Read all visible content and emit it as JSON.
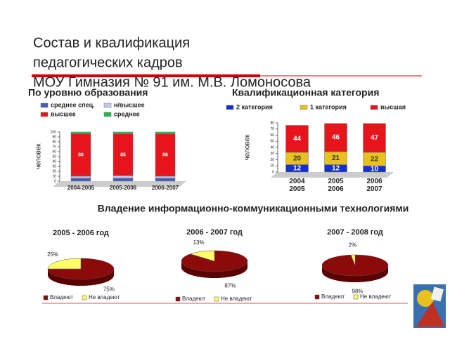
{
  "slide": {
    "title_lines": [
      "Состав и квалификация",
      "педагогических кадров",
      "МОУ Гимназия № 91 им. М.В. Ломоносова"
    ],
    "section_title": "Владение информационно-коммуникационными технологиями"
  },
  "chart_data": [
    {
      "type": "bar",
      "stacked": true,
      "title": "По уровню образования",
      "y_label": "человек",
      "categories": [
        "2004-2005",
        "2005-2006",
        "2006-2007"
      ],
      "series": [
        {
          "name": "среднее спец.",
          "color": "#4a5bb5",
          "values": [
            6,
            6,
            6
          ]
        },
        {
          "name": "н/высшее",
          "color": "#c8c8e8",
          "values": [
            4,
            5,
            4
          ]
        },
        {
          "name": "высшее",
          "color": "#e8141c",
          "values": [
            86,
            85,
            86
          ],
          "show_labels": true
        },
        {
          "name": "среднее",
          "color": "#2db34a",
          "values": [
            4,
            4,
            4
          ]
        }
      ],
      "ylim": [
        0,
        100
      ],
      "yticks": [
        0,
        10,
        20,
        30,
        40,
        50,
        60,
        70,
        80,
        90,
        100
      ]
    },
    {
      "type": "bar",
      "stacked": true,
      "title": "Квалификационная категория",
      "y_label": "человек",
      "categories": [
        "2004 2005",
        "2005 2006",
        "2006 2007"
      ],
      "series": [
        {
          "name": "2 категория",
          "color": "#1530d0",
          "values": [
            12,
            12,
            10
          ],
          "show_labels": true
        },
        {
          "name": "1 категория",
          "color": "#e8c020",
          "values": [
            20,
            21,
            22
          ],
          "show_labels": true
        },
        {
          "name": "высшая",
          "color": "#e8141c",
          "values": [
            44,
            46,
            47
          ],
          "show_labels": true
        }
      ],
      "ylim": [
        0,
        80
      ],
      "yticks": [
        0,
        10,
        20,
        30,
        40,
        50,
        60,
        70,
        80
      ]
    },
    {
      "type": "pie",
      "title": "2005 - 2006 год",
      "categories": [
        "Владеют",
        "Не владеют"
      ],
      "values": [
        75,
        25
      ],
      "value_labels": [
        "75%",
        "25%"
      ],
      "colors": [
        "#8b0a0a",
        "#ffff66"
      ]
    },
    {
      "type": "pie",
      "title": "2006 - 2007 год",
      "categories": [
        "Владеют",
        "Не владеют"
      ],
      "values": [
        87,
        13
      ],
      "value_labels": [
        "87%",
        "13%"
      ],
      "colors": [
        "#8b0a0a",
        "#ffff66"
      ]
    },
    {
      "type": "pie",
      "title": "2007 - 2008 год",
      "categories": [
        "Владеют",
        "Не владеют"
      ],
      "values": [
        98,
        2
      ],
      "value_labels": [
        "98%",
        "2%"
      ],
      "colors": [
        "#8b0a0a",
        "#ffff66"
      ]
    }
  ]
}
